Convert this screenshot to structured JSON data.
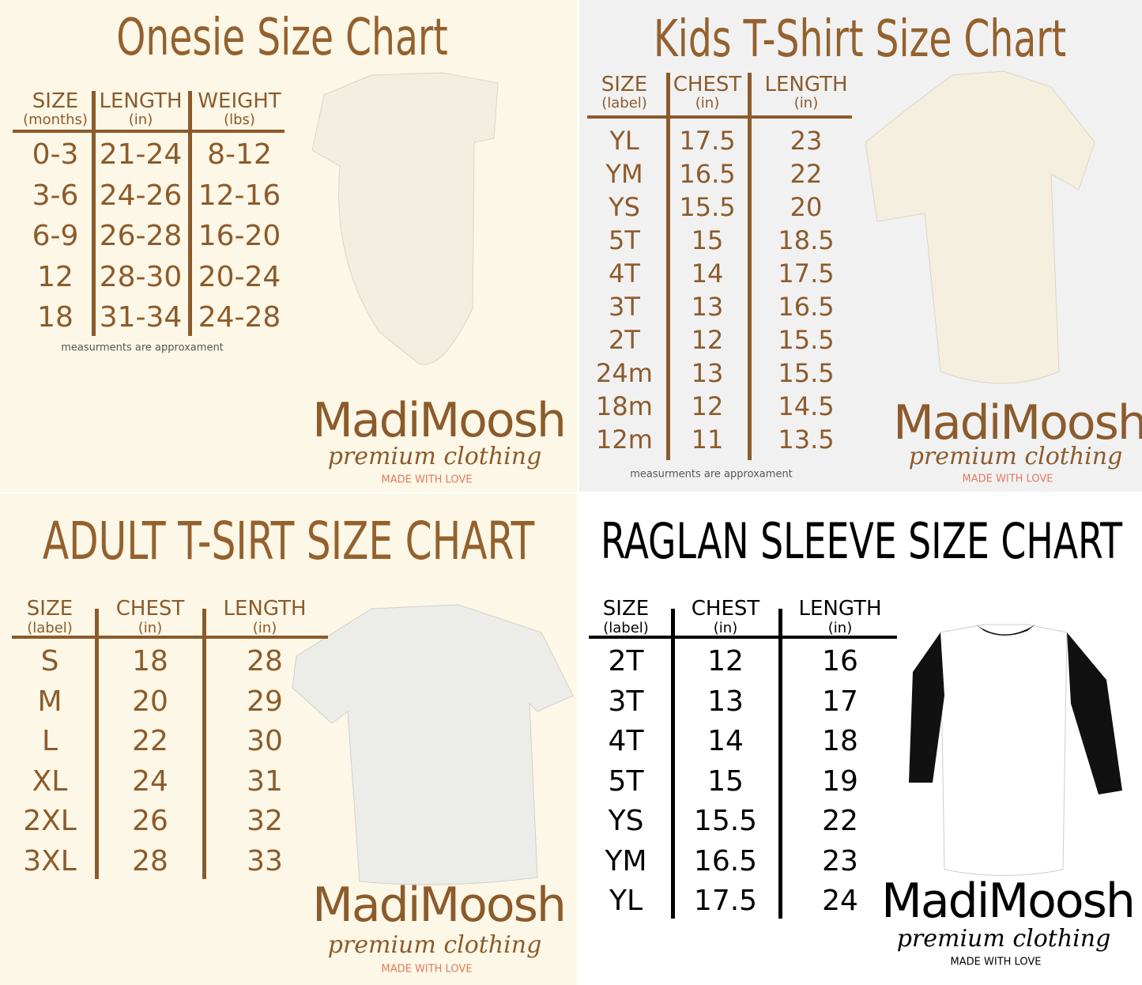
{
  "panels": [
    {
      "title": "Onesie Size Chart",
      "headers": [
        {
          "label": "SIZE",
          "unit": "(months)"
        },
        {
          "label": "LENGTH",
          "unit": "(in)"
        },
        {
          "label": "WEIGHT",
          "unit": "(lbs)"
        }
      ],
      "rows": [
        [
          "0-3",
          "21-24",
          "8-12"
        ],
        [
          "3-6",
          "24-26",
          "12-16"
        ],
        [
          "6-9",
          "26-28",
          "16-20"
        ],
        [
          "12",
          "28-30",
          "20-24"
        ],
        [
          "18",
          "31-34",
          "24-28"
        ]
      ]
    },
    {
      "title": "Kids T-Shirt Size Chart",
      "headers": [
        {
          "label": "SIZE",
          "unit": "(label)"
        },
        {
          "label": "CHEST",
          "unit": "(in)"
        },
        {
          "label": "LENGTH",
          "unit": "(in)"
        }
      ],
      "rows": [
        [
          "YL",
          "17.5",
          "23"
        ],
        [
          "YM",
          "16.5",
          "22"
        ],
        [
          "YS",
          "15.5",
          "20"
        ],
        [
          "5T",
          "15",
          "18.5"
        ],
        [
          "4T",
          "14",
          "17.5"
        ],
        [
          "3T",
          "13",
          "16.5"
        ],
        [
          "2T",
          "12",
          "15.5"
        ],
        [
          "24m",
          "13",
          "15.5"
        ],
        [
          "18m",
          "12",
          "14.5"
        ],
        [
          "12m",
          "11",
          "13.5"
        ]
      ]
    },
    {
      "title": "ADULT T-SIRT SIZE CHART",
      "headers": [
        {
          "label": "SIZE",
          "unit": "(label)"
        },
        {
          "label": "CHEST",
          "unit": "(in)"
        },
        {
          "label": "LENGTH",
          "unit": "(in)"
        }
      ],
      "rows": [
        [
          "S",
          "18",
          "28"
        ],
        [
          "M",
          "20",
          "29"
        ],
        [
          "L",
          "22",
          "30"
        ],
        [
          "XL",
          "24",
          "31"
        ],
        [
          "2XL",
          "26",
          "32"
        ],
        [
          "3XL",
          "28",
          "33"
        ]
      ]
    },
    {
      "title": "RAGLAN SLEEVE SIZE CHART",
      "headers": [
        {
          "label": "SIZE",
          "unit": "(label)"
        },
        {
          "label": "CHEST",
          "unit": "(in)"
        },
        {
          "label": "LENGTH",
          "unit": "(in)"
        }
      ],
      "rows": [
        [
          "2T",
          "12",
          "16"
        ],
        [
          "3T",
          "13",
          "17"
        ],
        [
          "4T",
          "14",
          "18"
        ],
        [
          "5T",
          "15",
          "19"
        ],
        [
          "YS",
          "15.5",
          "22"
        ],
        [
          "YM",
          "16.5",
          "23"
        ],
        [
          "YL",
          "17.5",
          "24"
        ]
      ]
    }
  ],
  "note": "measurments are approxament",
  "brand": {
    "name": "MadiMoosh",
    "tagline": "premium clothing",
    "motto": "MADE WITH LOVE"
  }
}
